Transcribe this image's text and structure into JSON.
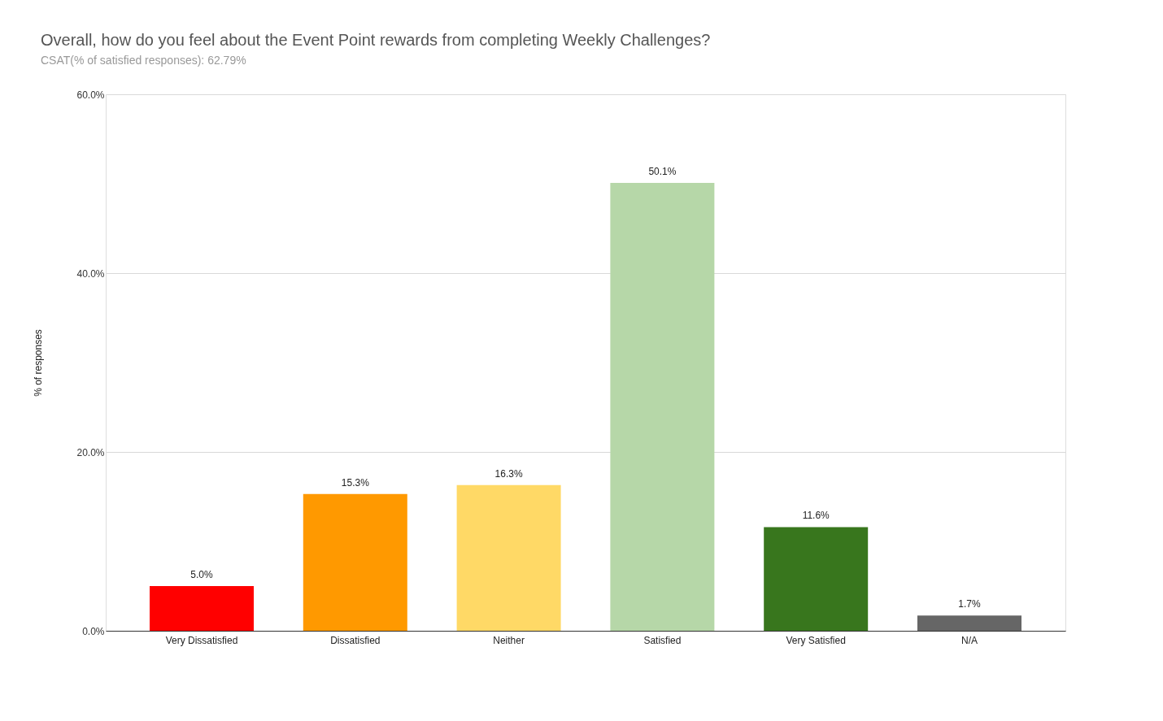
{
  "chart_data": {
    "type": "bar",
    "title": "Overall, how do you feel about the Event Point rewards from completing Weekly Challenges?",
    "subtitle": "CSAT(% of satisfied responses): 62.79%",
    "ylabel": "% of responses",
    "categories": [
      "Very Dissatisfied",
      "Dissatisfied",
      "Neither",
      "Satisfied",
      "Very Satisfied",
      "N/A"
    ],
    "values": [
      5.0,
      15.3,
      16.3,
      50.1,
      11.6,
      1.7
    ],
    "colors": [
      "#ff0000",
      "#ff9900",
      "#ffd966",
      "#b6d7a8",
      "#38761d",
      "#666666"
    ],
    "value_labels": [
      "5.0%",
      "15.3%",
      "16.3%",
      "50.1%",
      "11.6%",
      "1.7%"
    ],
    "ylim": [
      0,
      60
    ],
    "yticks": [
      {
        "value": 0,
        "label": "0.0%"
      },
      {
        "value": 20,
        "label": "20.0%"
      },
      {
        "value": 40,
        "label": "40.0%"
      },
      {
        "value": 60,
        "label": "60.0%"
      }
    ],
    "grid": "y"
  }
}
